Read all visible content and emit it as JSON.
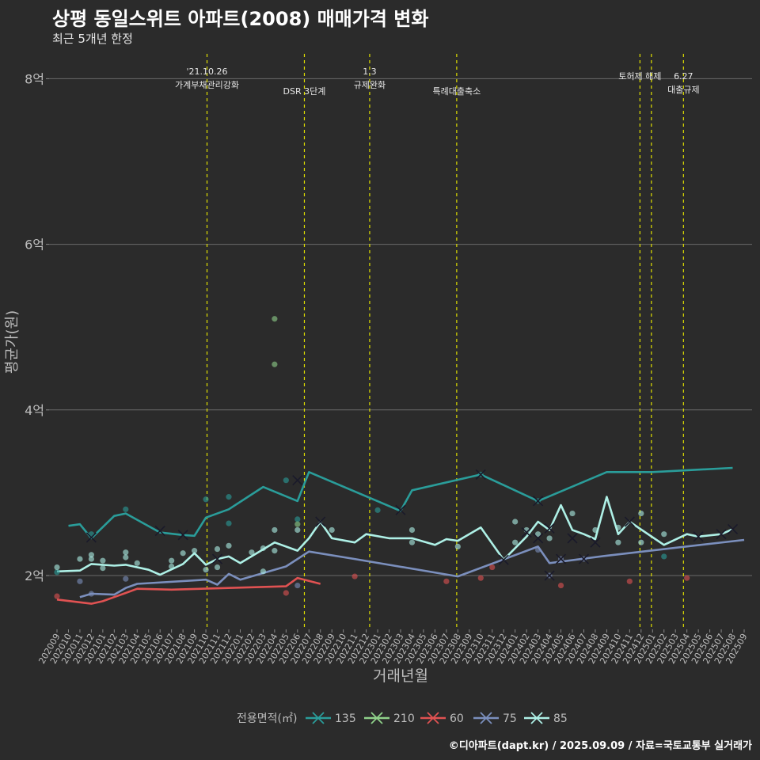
{
  "header": {
    "title": "상평 동일스위트 아파트(2008) 매매가격 변화",
    "subtitle": "최근 5개년 한정",
    "caption": "©디아파트(dapt.kr) / 2025.09.09 / 자료=국토교통부 실거래가"
  },
  "chart_data": {
    "type": "line",
    "xlabel": "거래년월",
    "ylabel": "평균가(원)",
    "ylim": [
      1.35,
      8.3
    ],
    "y_ticks": [
      {
        "v": 2,
        "label": "2억"
      },
      {
        "v": 4,
        "label": "4억"
      },
      {
        "v": 6,
        "label": "6억"
      },
      {
        "v": 8,
        "label": "8억"
      }
    ],
    "x_ticks": [
      "202009",
      "202010",
      "202011",
      "202012",
      "202101",
      "202102",
      "202103",
      "202104",
      "202105",
      "202106",
      "202107",
      "202108",
      "202109",
      "202110",
      "202111",
      "202112",
      "202201",
      "202202",
      "202203",
      "202204",
      "202205",
      "202206",
      "202207",
      "202208",
      "202209",
      "202210",
      "202211",
      "202212",
      "202301",
      "202302",
      "202303",
      "202304",
      "202305",
      "202306",
      "202307",
      "202308",
      "202309",
      "202310",
      "202311",
      "202312",
      "202401",
      "202402",
      "202403",
      "202404",
      "202405",
      "202406",
      "202407",
      "202408",
      "202409",
      "202410",
      "202411",
      "202412",
      "202501",
      "202502",
      "202503",
      "202504",
      "202505",
      "202506",
      "202507",
      "202508",
      "202509"
    ],
    "grid": true,
    "legend": {
      "title": "전용면적(㎡)",
      "position": "bottom"
    },
    "series": [
      {
        "name": "135",
        "color": "#2a9d9a",
        "x": [
          "202010",
          "202011",
          "202012",
          "202102",
          "202103",
          "202106",
          "202108",
          "202109",
          "202110",
          "202112",
          "202203",
          "202206",
          "202207",
          "202303",
          "202304",
          "202310",
          "202403",
          "202409",
          "202410",
          "202501",
          "202508"
        ],
        "y": [
          2.6,
          2.62,
          2.45,
          2.72,
          2.75,
          2.52,
          2.49,
          2.48,
          2.7,
          2.8,
          3.07,
          2.9,
          3.25,
          2.78,
          3.03,
          3.22,
          2.9,
          3.25,
          3.25,
          3.25,
          3.3
        ]
      },
      {
        "name": "210",
        "color": "#8fd18a",
        "x": [],
        "y": []
      },
      {
        "name": "60",
        "color": "#e05252",
        "x": [
          "202009",
          "202012",
          "202101",
          "202102",
          "202103",
          "202104",
          "202107",
          "202205",
          "202206",
          "202208"
        ],
        "y": [
          1.71,
          1.66,
          1.69,
          1.74,
          1.79,
          1.84,
          1.83,
          1.87,
          1.97,
          1.9
        ]
      },
      {
        "name": "75",
        "color": "#7b8fbd",
        "x": [
          "202011",
          "202012",
          "202102",
          "202103",
          "202104",
          "202110",
          "202111",
          "202112",
          "202201",
          "202205",
          "202207",
          "202211",
          "202308",
          "202403",
          "202404",
          "202409",
          "202509"
        ],
        "y": [
          1.74,
          1.78,
          1.77,
          1.85,
          1.9,
          1.95,
          1.89,
          2.02,
          1.95,
          2.11,
          2.29,
          2.2,
          1.99,
          2.35,
          2.15,
          2.24,
          2.43
        ]
      },
      {
        "name": "85",
        "color": "#aef0e6",
        "x": [
          "202009",
          "202011",
          "202012",
          "202102",
          "202103",
          "202105",
          "202106",
          "202108",
          "202109",
          "202110",
          "202111",
          "202112",
          "202201",
          "202204",
          "202206",
          "202207",
          "202208",
          "202209",
          "202211",
          "202212",
          "202302",
          "202304",
          "202306",
          "202307",
          "202308",
          "202310",
          "202312",
          "202402",
          "202403",
          "202404",
          "202405",
          "202406",
          "202407",
          "202408",
          "202409",
          "202410",
          "202411",
          "202502",
          "202504",
          "202505",
          "202507",
          "202508"
        ],
        "y": [
          2.05,
          2.06,
          2.14,
          2.12,
          2.13,
          2.07,
          2.01,
          2.14,
          2.27,
          2.13,
          2.2,
          2.23,
          2.15,
          2.4,
          2.3,
          2.45,
          2.65,
          2.45,
          2.4,
          2.5,
          2.45,
          2.45,
          2.37,
          2.44,
          2.42,
          2.58,
          2.19,
          2.47,
          2.65,
          2.55,
          2.85,
          2.55,
          2.5,
          2.44,
          2.95,
          2.5,
          2.65,
          2.37,
          2.5,
          2.47,
          2.5,
          2.56
        ]
      }
    ],
    "scatter": [
      {
        "s": "135",
        "x": "202009",
        "y": 2.04
      },
      {
        "s": "135",
        "x": "202012",
        "y": 2.5
      },
      {
        "s": "135",
        "x": "202103",
        "y": 2.8
      },
      {
        "s": "135",
        "x": "202110",
        "y": 2.92
      },
      {
        "s": "135",
        "x": "202112",
        "y": 2.95
      },
      {
        "s": "135",
        "x": "202112",
        "y": 2.63
      },
      {
        "s": "135",
        "x": "202205",
        "y": 3.15
      },
      {
        "s": "135",
        "x": "202206",
        "y": 2.68
      },
      {
        "s": "135",
        "x": "202301",
        "y": 2.79
      },
      {
        "s": "135",
        "x": "202310",
        "y": 3.22
      },
      {
        "s": "135",
        "x": "202403",
        "y": 2.9
      },
      {
        "s": "135",
        "x": "202502",
        "y": 2.23
      },
      {
        "s": "210",
        "x": "202204",
        "y": 5.1
      },
      {
        "s": "210",
        "x": "202204",
        "y": 4.55
      },
      {
        "s": "210",
        "x": "202206",
        "y": 2.62
      },
      {
        "s": "60",
        "x": "202009",
        "y": 1.75
      },
      {
        "s": "60",
        "x": "202205",
        "y": 1.79
      },
      {
        "s": "60",
        "x": "202211",
        "y": 1.99
      },
      {
        "s": "60",
        "x": "202307",
        "y": 1.93
      },
      {
        "s": "60",
        "x": "202310",
        "y": 1.97
      },
      {
        "s": "60",
        "x": "202311",
        "y": 2.1
      },
      {
        "s": "60",
        "x": "202405",
        "y": 1.88
      },
      {
        "s": "60",
        "x": "202411",
        "y": 1.93
      },
      {
        "s": "60",
        "x": "202504",
        "y": 1.97
      },
      {
        "s": "75",
        "x": "202011",
        "y": 1.93
      },
      {
        "s": "75",
        "x": "202012",
        "y": 1.78
      },
      {
        "s": "75",
        "x": "202103",
        "y": 1.96
      },
      {
        "s": "75",
        "x": "202206",
        "y": 1.88
      },
      {
        "s": "75",
        "x": "202403",
        "y": 2.31
      },
      {
        "s": "75",
        "x": "202404",
        "y": 2.0
      },
      {
        "s": "75",
        "x": "202405",
        "y": 2.2
      },
      {
        "s": "75",
        "x": "202407",
        "y": 2.2
      },
      {
        "s": "85",
        "x": "202009",
        "y": 2.1
      },
      {
        "s": "85",
        "x": "202011",
        "y": 2.2
      },
      {
        "s": "85",
        "x": "202012",
        "y": 2.25
      },
      {
        "s": "85",
        "x": "202012",
        "y": 2.2
      },
      {
        "s": "85",
        "x": "202101",
        "y": 2.18
      },
      {
        "s": "85",
        "x": "202101",
        "y": 2.09
      },
      {
        "s": "85",
        "x": "202103",
        "y": 2.28
      },
      {
        "s": "85",
        "x": "202103",
        "y": 2.22
      },
      {
        "s": "85",
        "x": "202104",
        "y": 2.15
      },
      {
        "s": "85",
        "x": "202107",
        "y": 2.18
      },
      {
        "s": "85",
        "x": "202107",
        "y": 2.11
      },
      {
        "s": "85",
        "x": "202108",
        "y": 2.27
      },
      {
        "s": "85",
        "x": "202109",
        "y": 2.3
      },
      {
        "s": "85",
        "x": "202110",
        "y": 2.07
      },
      {
        "s": "85",
        "x": "202111",
        "y": 2.32
      },
      {
        "s": "85",
        "x": "202111",
        "y": 2.1
      },
      {
        "s": "85",
        "x": "202112",
        "y": 2.36
      },
      {
        "s": "85",
        "x": "202202",
        "y": 2.28
      },
      {
        "s": "85",
        "x": "202203",
        "y": 2.33
      },
      {
        "s": "85",
        "x": "202203",
        "y": 2.05
      },
      {
        "s": "85",
        "x": "202204",
        "y": 2.55
      },
      {
        "s": "85",
        "x": "202204",
        "y": 2.3
      },
      {
        "s": "85",
        "x": "202206",
        "y": 2.55
      },
      {
        "s": "85",
        "x": "202209",
        "y": 2.55
      },
      {
        "s": "85",
        "x": "202304",
        "y": 2.55
      },
      {
        "s": "85",
        "x": "202304",
        "y": 2.4
      },
      {
        "s": "85",
        "x": "202308",
        "y": 2.35
      },
      {
        "s": "85",
        "x": "202401",
        "y": 2.65
      },
      {
        "s": "85",
        "x": "202401",
        "y": 2.4
      },
      {
        "s": "85",
        "x": "202402",
        "y": 2.55
      },
      {
        "s": "85",
        "x": "202403",
        "y": 2.5
      },
      {
        "s": "85",
        "x": "202404",
        "y": 2.45
      },
      {
        "s": "85",
        "x": "202406",
        "y": 2.75
      },
      {
        "s": "85",
        "x": "202408",
        "y": 2.55
      },
      {
        "s": "85",
        "x": "202410",
        "y": 2.58
      },
      {
        "s": "85",
        "x": "202410",
        "y": 2.4
      },
      {
        "s": "85",
        "x": "202412",
        "y": 2.75
      },
      {
        "s": "85",
        "x": "202412",
        "y": 2.4
      },
      {
        "s": "85",
        "x": "202502",
        "y": 2.5
      }
    ],
    "cross_markers": [
      {
        "s": "135",
        "x": "202012",
        "y": 2.46
      },
      {
        "s": "135",
        "x": "202106",
        "y": 2.54
      },
      {
        "s": "135",
        "x": "202108",
        "y": 2.49
      },
      {
        "s": "135",
        "x": "202206",
        "y": 3.15
      },
      {
        "s": "135",
        "x": "202303",
        "y": 2.79
      },
      {
        "s": "135",
        "x": "202310",
        "y": 3.22
      },
      {
        "s": "135",
        "x": "202403",
        "y": 2.9
      },
      {
        "s": "75",
        "x": "202404",
        "y": 2.0
      },
      {
        "s": "75",
        "x": "202405",
        "y": 2.2
      },
      {
        "s": "75",
        "x": "202407",
        "y": 2.2
      },
      {
        "s": "85",
        "x": "202111",
        "y": 2.2
      },
      {
        "s": "85",
        "x": "202208",
        "y": 2.65
      },
      {
        "s": "85",
        "x": "202312",
        "y": 2.19
      },
      {
        "s": "85",
        "x": "202402",
        "y": 2.52
      },
      {
        "s": "85",
        "x": "202403",
        "y": 2.45
      },
      {
        "s": "85",
        "x": "202404",
        "y": 2.57
      },
      {
        "s": "85",
        "x": "202406",
        "y": 2.45
      },
      {
        "s": "85",
        "x": "202408",
        "y": 2.4
      },
      {
        "s": "85",
        "x": "202411",
        "y": 2.65
      },
      {
        "s": "85",
        "x": "202505",
        "y": 2.47
      },
      {
        "s": "85",
        "x": "202507",
        "y": 2.5
      },
      {
        "s": "85",
        "x": "202508",
        "y": 2.56
      }
    ],
    "annotations": [
      {
        "x": 13.1,
        "lines": [
          "'21.10.26",
          "가계부채관리강화"
        ],
        "level": 0
      },
      {
        "x": 21.6,
        "lines": [
          "DSR 3단계"
        ],
        "level": 2
      },
      {
        "x": 27.3,
        "lines": [
          "1.3",
          "규제완화"
        ],
        "level": 0
      },
      {
        "x": 34.9,
        "lines": [
          "특례대출축소"
        ],
        "level": 2
      },
      {
        "x": 50.9,
        "lines": [
          "토허제 해제"
        ],
        "level": 1
      },
      {
        "x": 51.9,
        "lines": [],
        "level": 1
      },
      {
        "x": 54.7,
        "lines": [
          "6.27",
          "대출규제"
        ],
        "level": 1
      }
    ]
  }
}
